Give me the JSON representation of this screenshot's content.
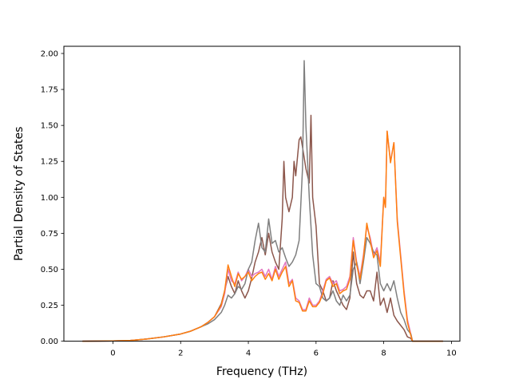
{
  "chart_data": {
    "type": "line",
    "title": "",
    "xlabel": "Frequency (THz)",
    "ylabel": "Partial Density of States",
    "xlim": [
      -1.45,
      10.25
    ],
    "ylim": [
      0,
      2.05
    ],
    "xticks": [
      0,
      2,
      4,
      6,
      8,
      10
    ],
    "xtick_labels": [
      "0",
      "2",
      "4",
      "6",
      "8",
      "10"
    ],
    "yticks": [
      0,
      0.25,
      0.5,
      0.75,
      1.0,
      1.25,
      1.5,
      1.75,
      2.0
    ],
    "ytick_labels": [
      "0.00",
      "0.25",
      "0.50",
      "0.75",
      "1.00",
      "1.25",
      "1.50",
      "1.75",
      "2.00"
    ],
    "grid": false,
    "legend": false,
    "series": [
      {
        "color": "#8c564b",
        "points": [
          [
            -0.9,
            0
          ],
          [
            0,
            0.002
          ],
          [
            0.5,
            0.005
          ],
          [
            1,
            0.015
          ],
          [
            1.5,
            0.03
          ],
          [
            2,
            0.05
          ],
          [
            2.3,
            0.07
          ],
          [
            2.6,
            0.1
          ],
          [
            2.8,
            0.13
          ],
          [
            3,
            0.17
          ],
          [
            3.2,
            0.26
          ],
          [
            3.3,
            0.35
          ],
          [
            3.4,
            0.45
          ],
          [
            3.5,
            0.38
          ],
          [
            3.6,
            0.33
          ],
          [
            3.7,
            0.42
          ],
          [
            3.8,
            0.35
          ],
          [
            3.9,
            0.3
          ],
          [
            4,
            0.35
          ],
          [
            4.1,
            0.44
          ],
          [
            4.2,
            0.55
          ],
          [
            4.3,
            0.62
          ],
          [
            4.4,
            0.72
          ],
          [
            4.5,
            0.6
          ],
          [
            4.6,
            0.75
          ],
          [
            4.7,
            0.62
          ],
          [
            4.8,
            0.55
          ],
          [
            4.9,
            0.5
          ],
          [
            5,
            0.85
          ],
          [
            5.05,
            1.25
          ],
          [
            5.1,
            1.0
          ],
          [
            5.2,
            0.9
          ],
          [
            5.3,
            1.0
          ],
          [
            5.35,
            1.25
          ],
          [
            5.4,
            1.15
          ],
          [
            5.5,
            1.4
          ],
          [
            5.55,
            1.42
          ],
          [
            5.6,
            1.35
          ],
          [
            5.7,
            1.2
          ],
          [
            5.8,
            1.1
          ],
          [
            5.85,
            1.57
          ],
          [
            5.9,
            1.0
          ],
          [
            6,
            0.8
          ],
          [
            6.05,
            0.6
          ],
          [
            6.1,
            0.4
          ],
          [
            6.2,
            0.35
          ],
          [
            6.3,
            0.28
          ],
          [
            6.4,
            0.3
          ],
          [
            6.5,
            0.42
          ],
          [
            6.6,
            0.35
          ],
          [
            6.7,
            0.3
          ],
          [
            6.8,
            0.25
          ],
          [
            6.9,
            0.22
          ],
          [
            7,
            0.3
          ],
          [
            7.1,
            0.62
          ],
          [
            7.15,
            0.5
          ],
          [
            7.2,
            0.4
          ],
          [
            7.3,
            0.32
          ],
          [
            7.4,
            0.3
          ],
          [
            7.5,
            0.35
          ],
          [
            7.6,
            0.35
          ],
          [
            7.7,
            0.28
          ],
          [
            7.8,
            0.48
          ],
          [
            7.9,
            0.25
          ],
          [
            8,
            0.3
          ],
          [
            8.1,
            0.2
          ],
          [
            8.2,
            0.3
          ],
          [
            8.3,
            0.18
          ],
          [
            8.4,
            0.14
          ],
          [
            8.5,
            0.11
          ],
          [
            8.6,
            0.08
          ],
          [
            8.7,
            0.03
          ],
          [
            8.8,
            0.02
          ],
          [
            8.85,
            0
          ],
          [
            9.75,
            0
          ]
        ]
      },
      {
        "color": "#e377c2",
        "points": [
          [
            -0.9,
            0
          ],
          [
            0,
            0.002
          ],
          [
            0.5,
            0.005
          ],
          [
            1,
            0.015
          ],
          [
            1.5,
            0.03
          ],
          [
            2,
            0.05
          ],
          [
            2.3,
            0.07
          ],
          [
            2.6,
            0.1
          ],
          [
            2.8,
            0.13
          ],
          [
            3,
            0.17
          ],
          [
            3.2,
            0.24
          ],
          [
            3.3,
            0.33
          ],
          [
            3.4,
            0.5
          ],
          [
            3.5,
            0.42
          ],
          [
            3.6,
            0.4
          ],
          [
            3.7,
            0.48
          ],
          [
            3.8,
            0.42
          ],
          [
            3.9,
            0.45
          ],
          [
            4,
            0.5
          ],
          [
            4.1,
            0.45
          ],
          [
            4.2,
            0.47
          ],
          [
            4.3,
            0.48
          ],
          [
            4.4,
            0.5
          ],
          [
            4.5,
            0.45
          ],
          [
            4.6,
            0.5
          ],
          [
            4.7,
            0.43
          ],
          [
            4.8,
            0.52
          ],
          [
            4.9,
            0.45
          ],
          [
            5,
            0.5
          ],
          [
            5.1,
            0.55
          ],
          [
            5.2,
            0.4
          ],
          [
            5.3,
            0.43
          ],
          [
            5.4,
            0.3
          ],
          [
            5.5,
            0.28
          ],
          [
            5.6,
            0.22
          ],
          [
            5.7,
            0.22
          ],
          [
            5.8,
            0.3
          ],
          [
            5.9,
            0.25
          ],
          [
            6,
            0.25
          ],
          [
            6.1,
            0.28
          ],
          [
            6.2,
            0.35
          ],
          [
            6.3,
            0.43
          ],
          [
            6.4,
            0.45
          ],
          [
            6.5,
            0.4
          ],
          [
            6.6,
            0.42
          ],
          [
            6.7,
            0.35
          ],
          [
            6.8,
            0.36
          ],
          [
            6.9,
            0.38
          ],
          [
            7,
            0.45
          ],
          [
            7.1,
            0.72
          ],
          [
            7.2,
            0.55
          ],
          [
            7.3,
            0.45
          ],
          [
            7.4,
            0.6
          ],
          [
            7.5,
            0.8
          ],
          [
            7.6,
            0.72
          ],
          [
            7.7,
            0.6
          ],
          [
            7.8,
            0.65
          ],
          [
            7.9,
            0.55
          ],
          [
            8,
            1.0
          ],
          [
            8.05,
            0.93
          ],
          [
            8.1,
            1.46
          ],
          [
            8.2,
            1.25
          ],
          [
            8.3,
            1.38
          ],
          [
            8.4,
            0.85
          ],
          [
            8.5,
            0.6
          ],
          [
            8.6,
            0.35
          ],
          [
            8.7,
            0.15
          ],
          [
            8.8,
            0.05
          ],
          [
            8.85,
            0
          ],
          [
            9.75,
            0
          ]
        ]
      },
      {
        "color": "#7f7f7f",
        "points": [
          [
            -0.9,
            0
          ],
          [
            0,
            0.002
          ],
          [
            0.5,
            0.005
          ],
          [
            1,
            0.015
          ],
          [
            1.5,
            0.03
          ],
          [
            2,
            0.05
          ],
          [
            2.3,
            0.07
          ],
          [
            2.6,
            0.1
          ],
          [
            2.8,
            0.12
          ],
          [
            3,
            0.15
          ],
          [
            3.2,
            0.2
          ],
          [
            3.3,
            0.25
          ],
          [
            3.4,
            0.32
          ],
          [
            3.5,
            0.3
          ],
          [
            3.6,
            0.33
          ],
          [
            3.7,
            0.38
          ],
          [
            3.8,
            0.36
          ],
          [
            3.9,
            0.4
          ],
          [
            4,
            0.5
          ],
          [
            4.1,
            0.55
          ],
          [
            4.2,
            0.7
          ],
          [
            4.3,
            0.82
          ],
          [
            4.4,
            0.65
          ],
          [
            4.5,
            0.62
          ],
          [
            4.6,
            0.85
          ],
          [
            4.7,
            0.68
          ],
          [
            4.8,
            0.7
          ],
          [
            4.9,
            0.62
          ],
          [
            5,
            0.65
          ],
          [
            5.1,
            0.58
          ],
          [
            5.2,
            0.52
          ],
          [
            5.3,
            0.55
          ],
          [
            5.4,
            0.6
          ],
          [
            5.5,
            0.7
          ],
          [
            5.6,
            1.2
          ],
          [
            5.65,
            1.95
          ],
          [
            5.7,
            1.5
          ],
          [
            5.8,
            1.0
          ],
          [
            5.9,
            0.6
          ],
          [
            6,
            0.4
          ],
          [
            6.1,
            0.38
          ],
          [
            6.2,
            0.3
          ],
          [
            6.3,
            0.28
          ],
          [
            6.4,
            0.3
          ],
          [
            6.5,
            0.35
          ],
          [
            6.6,
            0.28
          ],
          [
            6.7,
            0.25
          ],
          [
            6.8,
            0.32
          ],
          [
            6.9,
            0.28
          ],
          [
            7,
            0.32
          ],
          [
            7.1,
            0.5
          ],
          [
            7.2,
            0.55
          ],
          [
            7.3,
            0.4
          ],
          [
            7.4,
            0.55
          ],
          [
            7.5,
            0.72
          ],
          [
            7.6,
            0.68
          ],
          [
            7.7,
            0.62
          ],
          [
            7.8,
            0.6
          ],
          [
            7.9,
            0.4
          ],
          [
            8,
            0.35
          ],
          [
            8.1,
            0.4
          ],
          [
            8.2,
            0.35
          ],
          [
            8.3,
            0.42
          ],
          [
            8.4,
            0.3
          ],
          [
            8.5,
            0.2
          ],
          [
            8.6,
            0.15
          ],
          [
            8.7,
            0.08
          ],
          [
            8.8,
            0.05
          ],
          [
            8.85,
            0
          ],
          [
            9.75,
            0
          ]
        ]
      },
      {
        "color": "#ff7f0e",
        "points": [
          [
            -0.9,
            0
          ],
          [
            0,
            0.002
          ],
          [
            0.5,
            0.005
          ],
          [
            1,
            0.015
          ],
          [
            1.5,
            0.03
          ],
          [
            2,
            0.05
          ],
          [
            2.3,
            0.07
          ],
          [
            2.6,
            0.1
          ],
          [
            2.8,
            0.13
          ],
          [
            3,
            0.17
          ],
          [
            3.2,
            0.25
          ],
          [
            3.3,
            0.35
          ],
          [
            3.4,
            0.53
          ],
          [
            3.5,
            0.45
          ],
          [
            3.6,
            0.38
          ],
          [
            3.7,
            0.47
          ],
          [
            3.8,
            0.43
          ],
          [
            3.9,
            0.45
          ],
          [
            4,
            0.48
          ],
          [
            4.1,
            0.42
          ],
          [
            4.2,
            0.45
          ],
          [
            4.3,
            0.47
          ],
          [
            4.4,
            0.48
          ],
          [
            4.5,
            0.43
          ],
          [
            4.6,
            0.47
          ],
          [
            4.7,
            0.42
          ],
          [
            4.8,
            0.5
          ],
          [
            4.9,
            0.43
          ],
          [
            5,
            0.48
          ],
          [
            5.1,
            0.52
          ],
          [
            5.2,
            0.38
          ],
          [
            5.3,
            0.42
          ],
          [
            5.4,
            0.28
          ],
          [
            5.5,
            0.27
          ],
          [
            5.6,
            0.21
          ],
          [
            5.7,
            0.21
          ],
          [
            5.8,
            0.28
          ],
          [
            5.9,
            0.24
          ],
          [
            6,
            0.24
          ],
          [
            6.1,
            0.27
          ],
          [
            6.2,
            0.33
          ],
          [
            6.3,
            0.42
          ],
          [
            6.4,
            0.44
          ],
          [
            6.5,
            0.38
          ],
          [
            6.6,
            0.4
          ],
          [
            6.7,
            0.33
          ],
          [
            6.8,
            0.35
          ],
          [
            6.9,
            0.36
          ],
          [
            7,
            0.43
          ],
          [
            7.1,
            0.7
          ],
          [
            7.2,
            0.53
          ],
          [
            7.3,
            0.43
          ],
          [
            7.4,
            0.58
          ],
          [
            7.5,
            0.82
          ],
          [
            7.6,
            0.7
          ],
          [
            7.7,
            0.58
          ],
          [
            7.8,
            0.63
          ],
          [
            7.9,
            0.52
          ],
          [
            8,
            1.0
          ],
          [
            8.05,
            0.93
          ],
          [
            8.1,
            1.46
          ],
          [
            8.2,
            1.24
          ],
          [
            8.3,
            1.38
          ],
          [
            8.4,
            0.83
          ],
          [
            8.5,
            0.58
          ],
          [
            8.6,
            0.33
          ],
          [
            8.7,
            0.13
          ],
          [
            8.8,
            0.04
          ],
          [
            8.85,
            0
          ],
          [
            9.75,
            0
          ]
        ]
      }
    ]
  }
}
